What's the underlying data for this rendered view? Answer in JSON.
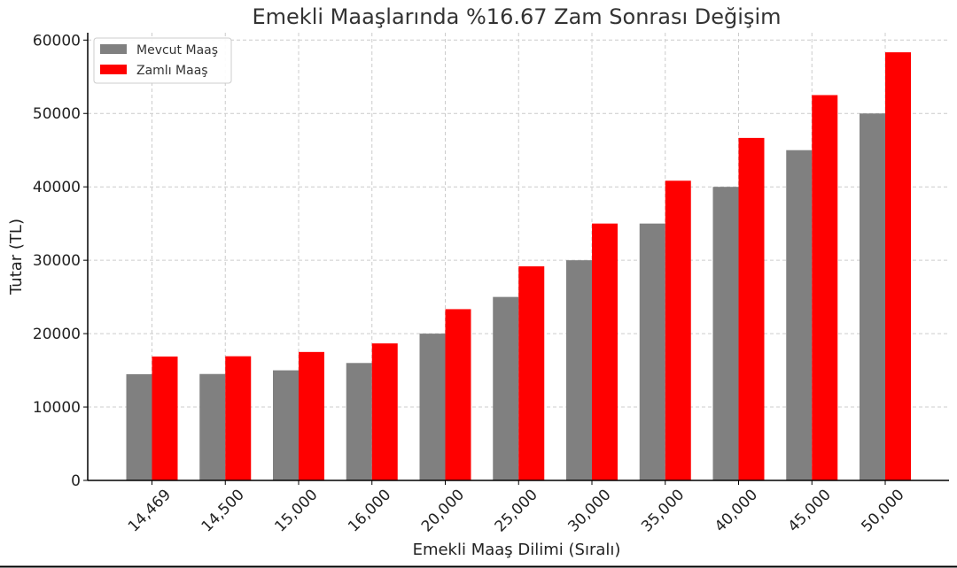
{
  "chart_data": {
    "type": "bar",
    "title": "Emekli Maaşlarında %16.67 Zam Sonrası Değişim",
    "xlabel": "Emekli Maaş Dilimi (Sıralı)",
    "ylabel": "Tutar (TL)",
    "categories": [
      "14,469",
      "14,500",
      "15,000",
      "16,000",
      "20,000",
      "25,000",
      "30,000",
      "35,000",
      "40,000",
      "45,000",
      "50,000"
    ],
    "ylim": [
      0,
      61000
    ],
    "yticks": [
      0,
      10000,
      20000,
      30000,
      40000,
      50000,
      60000
    ],
    "yticklabels": [
      "0",
      "10000",
      "20000",
      "30000",
      "40000",
      "50000",
      "60000"
    ],
    "grid": true,
    "legend_position": "top-left",
    "series": [
      {
        "name": "Mevcut Maaş",
        "color": "#808080",
        "values": [
          14469,
          14500,
          15000,
          16000,
          20000,
          25000,
          30000,
          35000,
          40000,
          45000,
          50000
        ]
      },
      {
        "name": "Zamlı Maaş",
        "color": "#ff0000",
        "values": [
          16881,
          16917,
          17500,
          18667,
          23334,
          29168,
          35001,
          40835,
          46668,
          52502,
          58335
        ]
      }
    ]
  }
}
